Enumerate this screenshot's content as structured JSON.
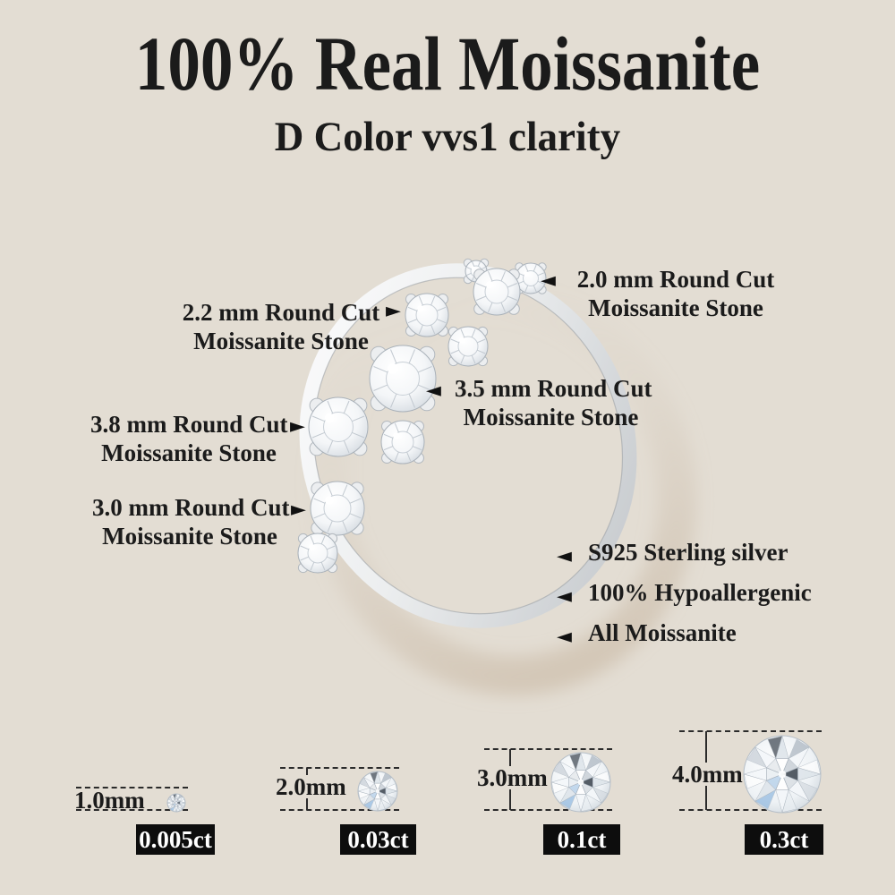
{
  "colors": {
    "background": "#e3ddd3",
    "text": "#1b1b1b",
    "badge_background": "#0d0d0d",
    "badge_text": "#ffffff",
    "metal": "#d9dcdf"
  },
  "header": {
    "title": "100% Real Moissanite",
    "subtitle": "D Color vvs1 clarity"
  },
  "icons": {
    "arrow_left": "◄",
    "arrow_right": "►"
  },
  "callouts": [
    {
      "line1": "2.2 mm Round Cut",
      "line2": "Moissanite Stone",
      "direction": "right"
    },
    {
      "line1": "2.0 mm Round Cut",
      "line2": "Moissanite Stone",
      "direction": "left"
    },
    {
      "line1": "3.5 mm Round Cut",
      "line2": "Moissanite Stone",
      "direction": "left"
    },
    {
      "line1": "3.8 mm Round Cut",
      "line2": "Moissanite Stone",
      "direction": "right"
    },
    {
      "line1": "3.0 mm Round Cut",
      "line2": "Moissanite Stone",
      "direction": "right"
    }
  ],
  "features": [
    {
      "label": "S925 Sterling silver"
    },
    {
      "label": "100% Hypoallergenic"
    },
    {
      "label": "All Moissanite"
    }
  ],
  "size_chart": [
    {
      "size": "1.0mm",
      "carat": "0.005ct"
    },
    {
      "size": "2.0mm",
      "carat": "0.03ct"
    },
    {
      "size": "3.0mm",
      "carat": "0.1ct"
    },
    {
      "size": "4.0mm",
      "carat": "0.3ct"
    }
  ]
}
